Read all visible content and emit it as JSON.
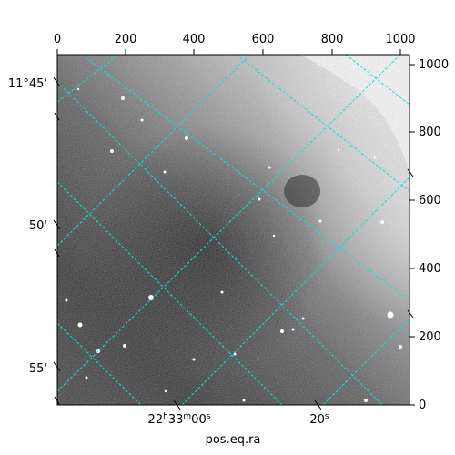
{
  "figure": {
    "top_axis_ticks": [
      "0",
      "200",
      "400",
      "600",
      "800",
      "1000"
    ],
    "right_axis_ticks": [
      "0",
      "200",
      "400",
      "600",
      "800",
      "1000"
    ],
    "left_axis_ticks": [
      "11°45'",
      "50'",
      "55'"
    ],
    "bottom_axis_ticks": [
      "22h33m00s",
      "20s"
    ],
    "bottom_axis_title": "pos.eq.ra",
    "grid_color": "#00e5e5",
    "colormap": "grayscale"
  }
}
